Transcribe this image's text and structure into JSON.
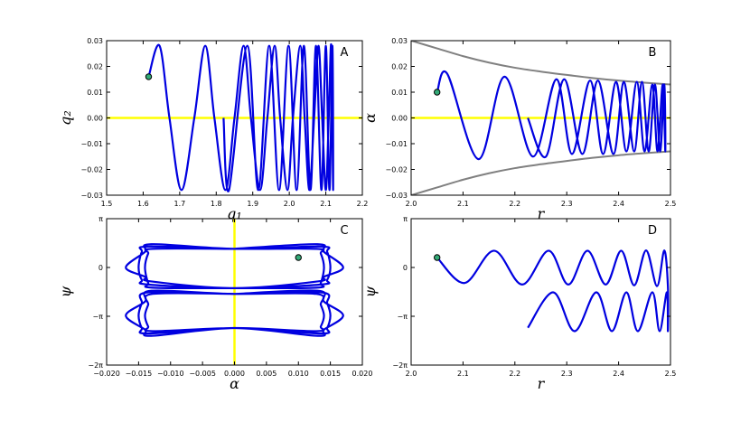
{
  "chart_data": [
    {
      "type": "line",
      "label": "A",
      "xlabel": "q₁",
      "ylabel": "q₂",
      "xlim": [
        1.5,
        2.2
      ],
      "ylim": [
        -0.03,
        0.03
      ],
      "xticks": [
        1.5,
        1.6,
        1.7,
        1.8,
        1.9,
        {
          "value": 2,
          "label": "2.0"
        },
        2.1,
        2.2
      ],
      "yticks": [
        {
          "value": -0.03,
          "label": "−0.03"
        },
        {
          "value": -0.02,
          "label": "−0.02"
        },
        {
          "value": -0.01,
          "label": "−0.01"
        },
        {
          "value": 0,
          "label": "0.00"
        },
        0.01,
        0.02,
        0.03
      ],
      "axhline": 0,
      "axhline_color": "#ffff00",
      "series": [
        {
          "color": "#0000e0",
          "x": [
            1.615,
            1.645,
            1.672,
            1.705,
            1.74,
            1.77,
            1.795,
            1.825,
            1.85,
            1.875,
            1.895,
            1.92,
            1.94,
            1.96,
            1.975,
            1.995,
            2.01,
            2.03,
            2.042,
            2.055,
            2.068,
            2.08,
            2.09,
            2.1,
            2.108,
            2.115,
            2.12,
            2.118,
            2.11,
            2.1,
            2.088,
            2.073,
            2.058,
            2.04,
            2.02,
            1.998,
            1.972,
            1.945,
            1.915,
            1.885,
            1.835,
            1.82
          ],
          "values": [
            0.016,
            0.028,
            0,
            -0.028,
            0,
            0.028,
            0,
            -0.028,
            0,
            0.028,
            0,
            -0.028,
            0,
            0.028,
            0,
            -0.028,
            0,
            0.028,
            0,
            -0.028,
            0,
            0.028,
            0,
            -0.028,
            0,
            0.028,
            -0.028,
            0.028,
            -0.028,
            0.028,
            -0.028,
            0.028,
            -0.028,
            0.028,
            -0.028,
            0.028,
            -0.028,
            0.028,
            -0.028,
            0.028,
            -0.028,
            0
          ]
        },
        {
          "color": "#33aa77",
          "marker": "o",
          "x": [
            1.615
          ],
          "values": [
            0.016
          ]
        }
      ]
    },
    {
      "type": "line",
      "label": "B",
      "xlabel": "r",
      "ylabel": "α",
      "xlim": [
        2.0,
        2.5
      ],
      "ylim": [
        -0.03,
        0.03
      ],
      "xticks": [
        {
          "value": 2,
          "label": "2.0"
        },
        2.1,
        2.2,
        2.3,
        2.4,
        2.5
      ],
      "yticks": [
        {
          "value": -0.03,
          "label": "−0.03"
        },
        {
          "value": -0.02,
          "label": "−0.02"
        },
        {
          "value": -0.01,
          "label": "−0.01"
        },
        {
          "value": 0,
          "label": "0.00"
        },
        0.01,
        0.02,
        0.03
      ],
      "axhline": 0,
      "axhline_color": "#ffff00",
      "series": [
        {
          "color": "#808080",
          "x": [
            2.0,
            2.05,
            2.1,
            2.15,
            2.2,
            2.25,
            2.3,
            2.35,
            2.4,
            2.45,
            2.5
          ],
          "values": [
            0.03,
            0.027,
            0.024,
            0.0215,
            0.0195,
            0.018,
            0.0167,
            0.0155,
            0.0145,
            0.0137,
            0.013
          ]
        },
        {
          "color": "#808080",
          "x": [
            2.0,
            2.05,
            2.1,
            2.15,
            2.2,
            2.25,
            2.3,
            2.35,
            2.4,
            2.45,
            2.5
          ],
          "values": [
            -0.03,
            -0.027,
            -0.024,
            -0.0215,
            -0.0195,
            -0.018,
            -0.0167,
            -0.0155,
            -0.0145,
            -0.0137,
            -0.013
          ]
        },
        {
          "color": "#0000e0",
          "x": [
            2.05,
            2.07,
            2.13,
            2.18,
            2.235,
            2.28,
            2.31,
            2.345,
            2.37,
            2.395,
            2.415,
            2.435,
            2.45,
            2.465,
            2.475,
            2.485,
            2.49,
            2.488,
            2.48,
            2.47,
            2.458,
            2.445,
            2.43,
            2.41,
            2.39,
            2.36,
            2.33,
            2.295,
            2.26,
            2.225
          ],
          "values": [
            0.01,
            0.017,
            -0.016,
            0.016,
            -0.015,
            0.015,
            -0.014,
            0.0145,
            -0.014,
            0.014,
            -0.013,
            0.014,
            -0.013,
            0.013,
            -0.013,
            0.013,
            -0.013,
            0.013,
            -0.013,
            0.013,
            -0.013,
            0.014,
            -0.013,
            0.014,
            -0.014,
            0.0145,
            -0.014,
            0.015,
            -0.015,
            0
          ]
        },
        {
          "color": "#33aa77",
          "marker": "o",
          "x": [
            2.05
          ],
          "values": [
            0.01
          ]
        }
      ]
    },
    {
      "type": "line",
      "label": "C",
      "xlabel": "α",
      "ylabel": "ψ",
      "xlim": [
        -0.02,
        0.02
      ],
      "ylim": [
        -6.2832,
        3.1416
      ],
      "xticks": [
        {
          "value": -0.02,
          "label": "−0.020"
        },
        {
          "value": -0.015,
          "label": "−0.015"
        },
        {
          "value": -0.01,
          "label": "−0.010"
        },
        {
          "value": -0.005,
          "label": "−0.005"
        },
        {
          "value": 0,
          "label": "0.000"
        },
        {
          "value": 0.005,
          "label": "0.005"
        },
        {
          "value": 0.01,
          "label": "0.010"
        },
        {
          "value": 0.015,
          "label": "0.015"
        },
        {
          "value": 0.02,
          "label": "0.020"
        }
      ],
      "yticks": [
        {
          "value": -6.2832,
          "label": "−2π"
        },
        {
          "value": -3.1416,
          "label": "−π"
        },
        0,
        {
          "value": 3.1416,
          "label": "π"
        }
      ],
      "axvline": 0,
      "axvline_color": "#ffff00",
      "series": [
        {
          "color": "#0000e0",
          "x": [
            0,
            0.013,
            0.014,
            0.017,
            0.014,
            0.013,
            0,
            -0.013,
            -0.014,
            -0.017,
            -0.014,
            -0.013,
            0,
            0.0135,
            0.0145,
            0.015,
            0.0145,
            0.0135,
            0,
            -0.0135,
            -0.0145,
            -0.015,
            -0.0145,
            -0.0135,
            0,
            0.0128,
            0.0135,
            0.014,
            0.0135,
            0.0128,
            0,
            -0.0128,
            -0.0135,
            -0.014,
            -0.0135,
            -0.0128,
            0
          ],
          "values": [
            1.2,
            1.5,
            1.0,
            0,
            -0.6,
            -0.9,
            -1.33,
            -0.9,
            -0.6,
            0,
            1.0,
            1.5,
            1.2,
            1.35,
            1.0,
            0,
            -0.8,
            -1.1,
            -1.33,
            -1.1,
            -0.8,
            0,
            1.0,
            1.35,
            1.2,
            1.2,
            0.9,
            0,
            -1.0,
            -1.3,
            -1.33,
            -1.3,
            -1.0,
            0,
            0.9,
            1.2,
            1.2
          ]
        },
        {
          "color": "#0000e0",
          "x": [
            0,
            0.013,
            0.014,
            0.017,
            0.014,
            0.013,
            0,
            -0.013,
            -0.014,
            -0.017,
            -0.014,
            -0.013,
            0,
            0.0135,
            0.0145,
            0.015,
            0.0145,
            0.0135,
            0,
            -0.0135,
            -0.0145,
            -0.015,
            -0.0145,
            -0.0135,
            0,
            0.0128,
            0.0135,
            0.014,
            0.0135,
            0.0128,
            0,
            -0.0128,
            -0.0135,
            -0.014,
            -0.0135,
            -0.0128,
            0
          ],
          "values": [
            -1.7,
            -1.5,
            -2.2,
            -3.1,
            -4.0,
            -4.4,
            -3.9,
            -4.4,
            -4.0,
            -3.1,
            -2.2,
            -1.5,
            -1.7,
            -1.6,
            -2.3,
            -3.1,
            -3.9,
            -4.25,
            -3.9,
            -4.25,
            -3.9,
            -3.1,
            -2.3,
            -1.6,
            -1.7,
            -1.7,
            -2.4,
            -3.1,
            -3.8,
            -4.1,
            -3.9,
            -4.1,
            -3.8,
            -3.1,
            -2.4,
            -1.7,
            -1.7
          ]
        },
        {
          "color": "#33aa77",
          "marker": "o",
          "x": [
            0.01
          ],
          "values": [
            0.64
          ]
        }
      ]
    },
    {
      "type": "line",
      "label": "D",
      "xlabel": "r",
      "ylabel": "ψ",
      "xlim": [
        2.0,
        2.5
      ],
      "ylim": [
        -6.2832,
        3.1416
      ],
      "xticks": [
        {
          "value": 2,
          "label": "2.0"
        },
        2.1,
        2.2,
        2.3,
        2.4,
        2.5
      ],
      "yticks": [
        {
          "value": -6.2832,
          "label": "−2π"
        },
        {
          "value": -3.1416,
          "label": "−π"
        },
        0,
        {
          "value": 3.1416,
          "label": "π"
        }
      ],
      "series": [
        {
          "color": "#0000e0",
          "x": [
            2.05,
            2.103,
            2.16,
            2.214,
            2.265,
            2.303,
            2.34,
            2.375,
            2.405,
            2.43,
            2.453,
            2.474,
            2.488,
            2.495,
            2.495,
            2.493,
            2.479,
            2.465,
            2.437,
            2.415,
            2.387,
            2.357,
            2.315,
            2.274,
            2.225
          ],
          "values": [
            0.64,
            -1.0,
            1.08,
            -1.1,
            1.08,
            -1.1,
            1.08,
            -1.1,
            1.08,
            -1.15,
            1.1,
            -1.2,
            1.1,
            -1.2,
            -4.1,
            -1.6,
            -4.1,
            -1.6,
            -4.1,
            -1.6,
            -4.1,
            -1.6,
            -4.1,
            -1.6,
            -3.88
          ]
        },
        {
          "color": "#33aa77",
          "marker": "o",
          "x": [
            2.05
          ],
          "values": [
            0.64
          ]
        }
      ]
    }
  ]
}
